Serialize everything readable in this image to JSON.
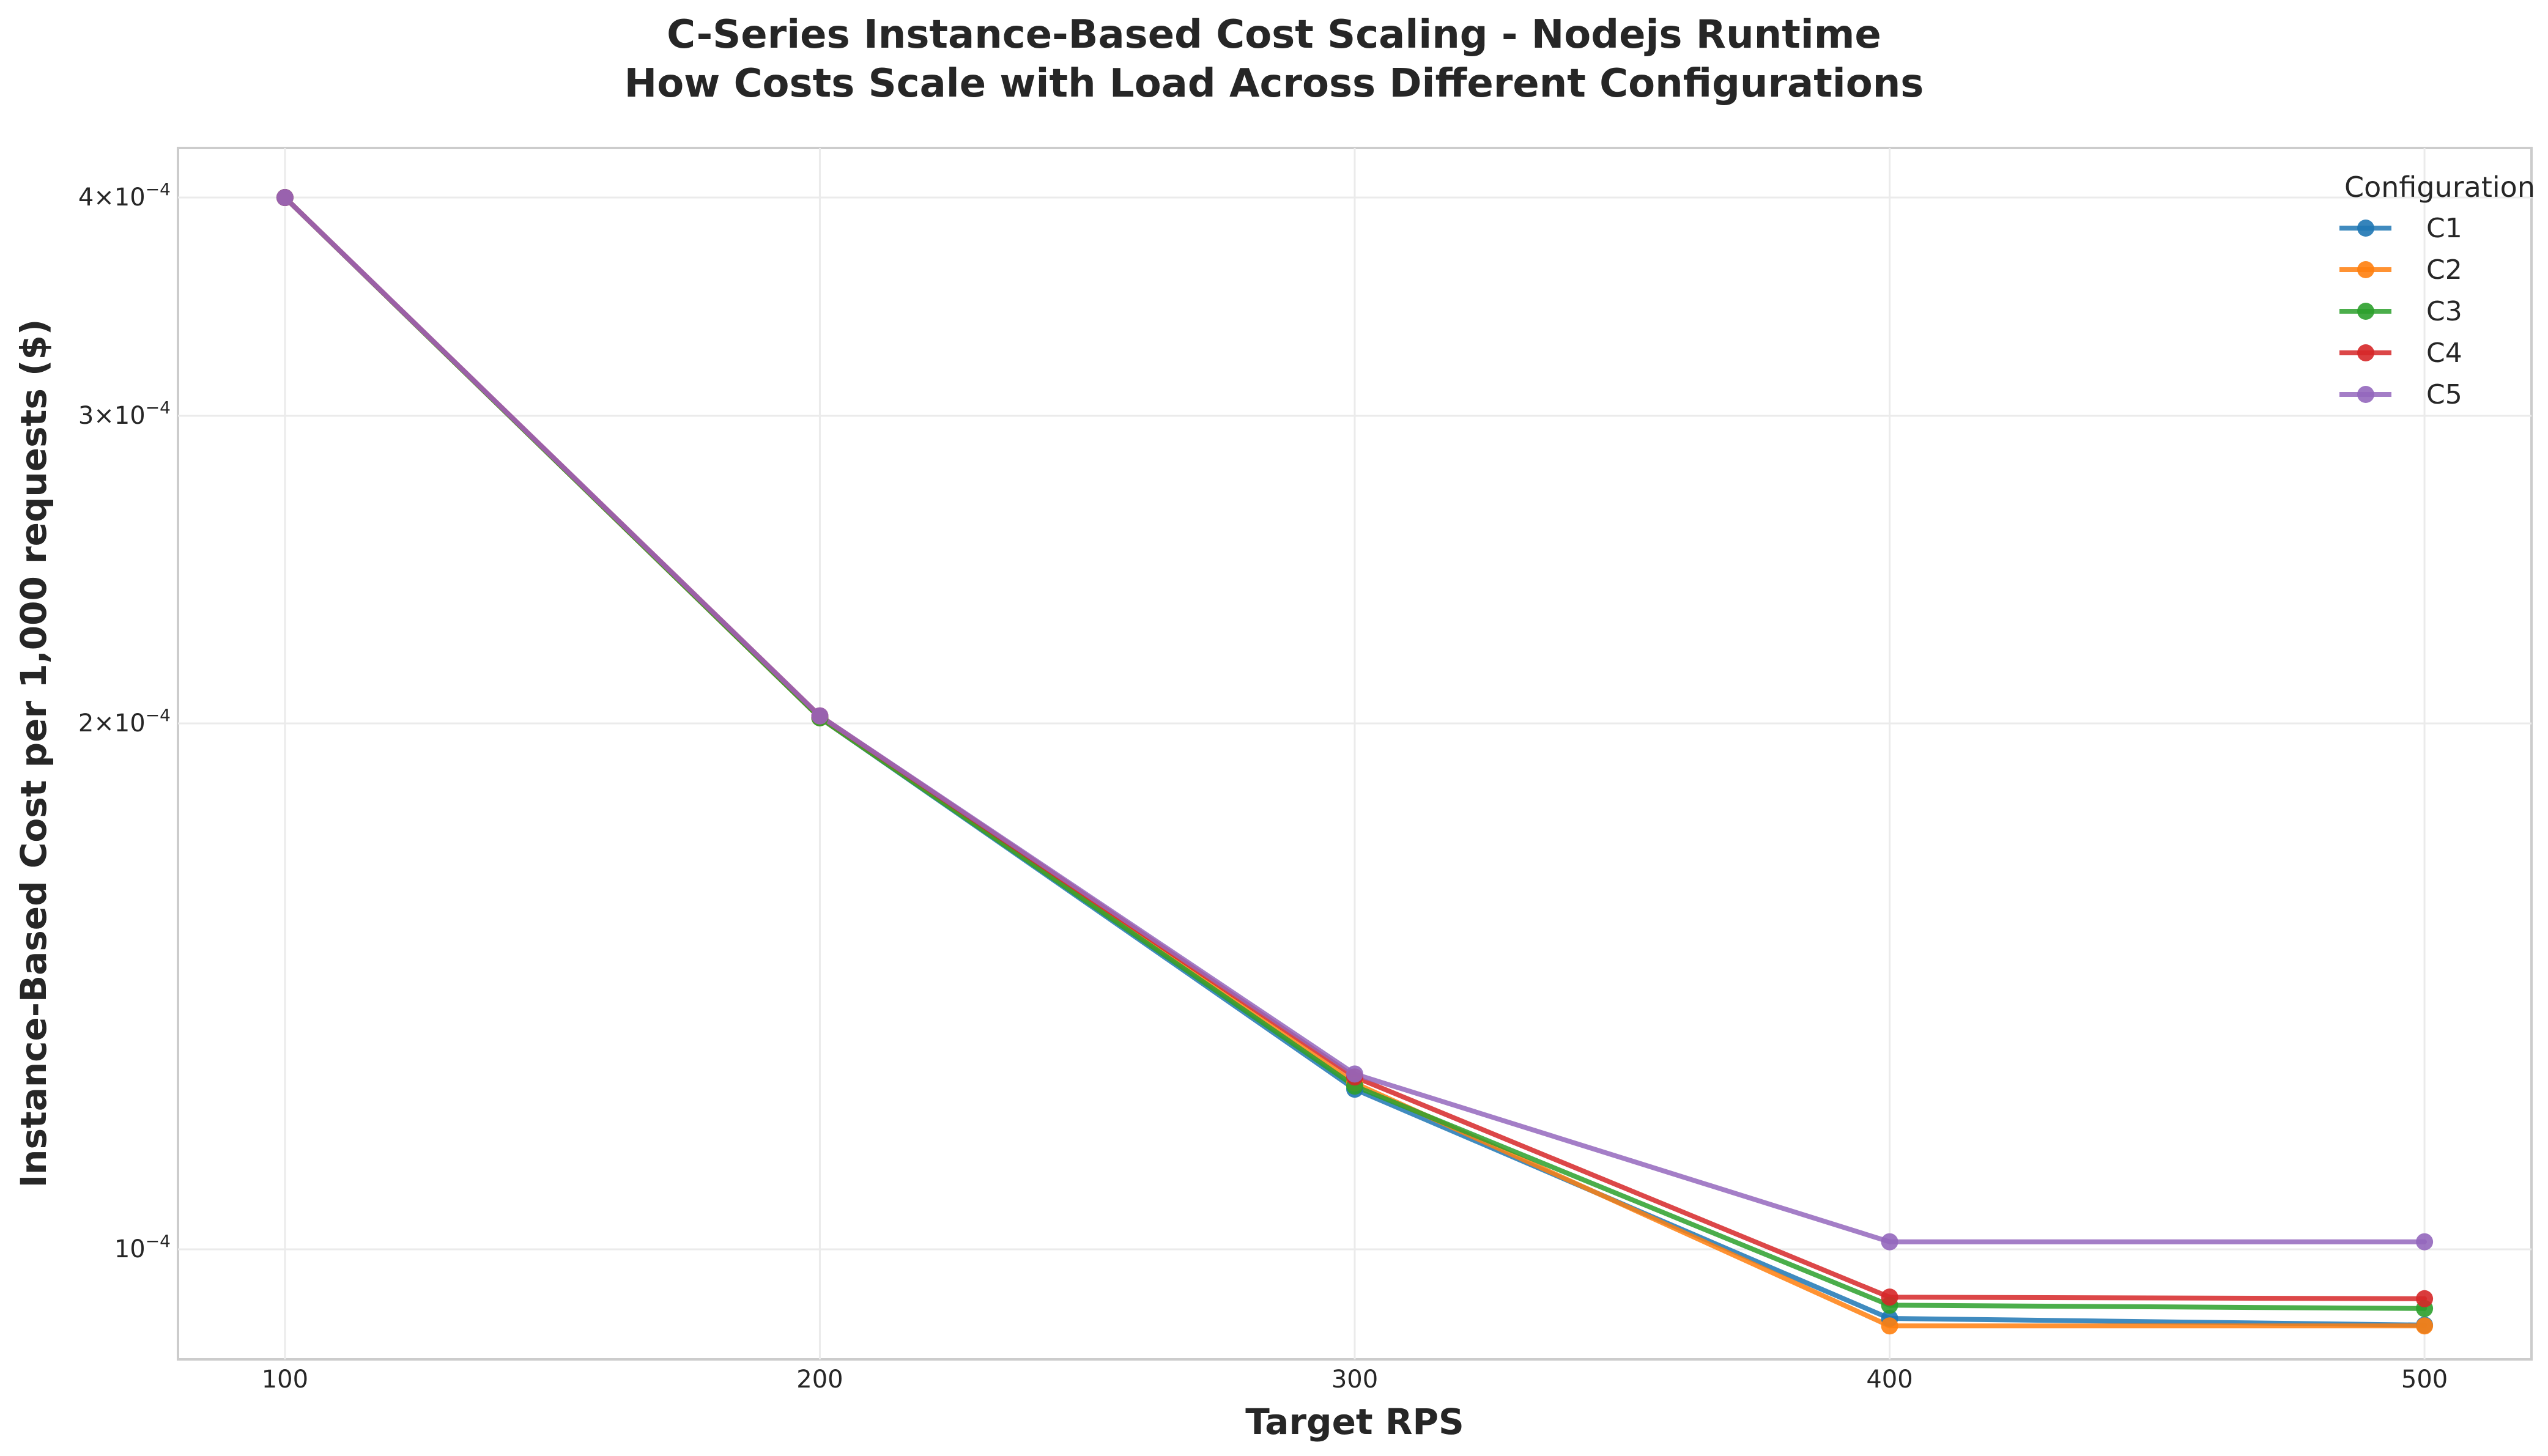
{
  "chart_data": {
    "type": "line",
    "title_line1": "C-Series Instance-Based Cost Scaling - Nodejs Runtime",
    "title_line2": "How Costs Scale with Load Across Different Configurations",
    "xlabel": "Target RPS",
    "ylabel": "Instance-Based Cost per 1,000 requests ($)",
    "x": [
      100,
      200,
      300,
      400,
      500
    ],
    "xlim": [
      80,
      520
    ],
    "xticks": [
      100,
      200,
      300,
      400,
      500
    ],
    "ylim": [
      8.65e-05,
      0.000427
    ],
    "yscale": "log",
    "yticks": [
      {
        "value": 0.0004,
        "mantissa": "4",
        "exp": "−4"
      },
      {
        "value": 0.0003,
        "mantissa": "3",
        "exp": "−4"
      },
      {
        "value": 0.0002,
        "mantissa": "2",
        "exp": "−4"
      },
      {
        "value": 0.0001,
        "mantissa": "",
        "exp": "−4"
      }
    ],
    "grid": true,
    "legend_title": "Configuration",
    "legend_position": "top-right",
    "series": [
      {
        "name": "C1",
        "color": "#1f77b4",
        "values": [
          0.0004,
          0.0002015,
          0.0001235,
          9.13e-05,
          9.05e-05
        ]
      },
      {
        "name": "C2",
        "color": "#ff7f0e",
        "values": [
          0.0004,
          0.0002015,
          0.0001245,
          9.04e-05,
          9.04e-05
        ]
      },
      {
        "name": "C3",
        "color": "#2ca02c",
        "values": [
          0.0004,
          0.0002015,
          0.000124,
          9.29e-05,
          9.25e-05
        ]
      },
      {
        "name": "C4",
        "color": "#d62728",
        "values": [
          0.0004,
          0.000202,
          0.0001255,
          9.39e-05,
          9.37e-05
        ]
      },
      {
        "name": "C5",
        "color": "#9467bd",
        "values": [
          0.0004,
          0.000202,
          0.000126,
          0.000101,
          0.000101
        ]
      }
    ]
  }
}
